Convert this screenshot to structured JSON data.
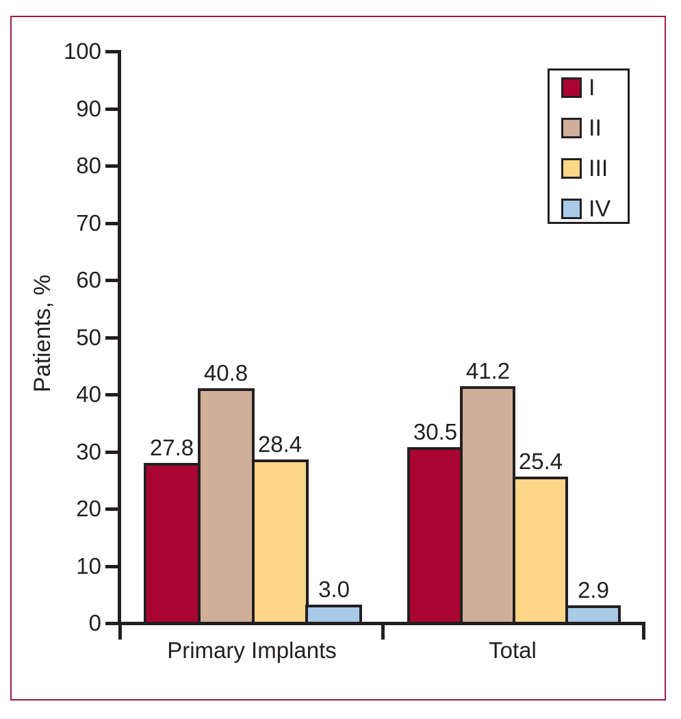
{
  "figure": {
    "frame_color": "#9b1c3e",
    "ink_color": "#231f20",
    "background": "#ffffff"
  },
  "chart_data": {
    "type": "bar",
    "title": "",
    "xlabel": "",
    "ylabel": "Patients, %",
    "ylim": [
      0,
      100
    ],
    "ytick_step": 10,
    "ytick_labels": [
      "0",
      "10",
      "20",
      "30",
      "40",
      "50",
      "60",
      "70",
      "80",
      "90",
      "100"
    ],
    "grid": false,
    "legend_position": "top-right",
    "categories": [
      "Primary Implants",
      "Total"
    ],
    "series": [
      {
        "name": "I",
        "color": "#aa0532",
        "values": [
          27.8,
          30.5
        ],
        "labels": [
          "27.8",
          "30.5"
        ]
      },
      {
        "name": "II",
        "color": "#cfae9a",
        "values": [
          40.8,
          41.2
        ],
        "labels": [
          "40.8",
          "41.2"
        ]
      },
      {
        "name": "III",
        "color": "#fdd688",
        "values": [
          28.4,
          25.4
        ],
        "labels": [
          "28.4",
          "25.4"
        ]
      },
      {
        "name": "IV",
        "color": "#a9cae7",
        "values": [
          3.0,
          2.9
        ],
        "labels": [
          "3.0",
          "2.9"
        ]
      }
    ]
  }
}
